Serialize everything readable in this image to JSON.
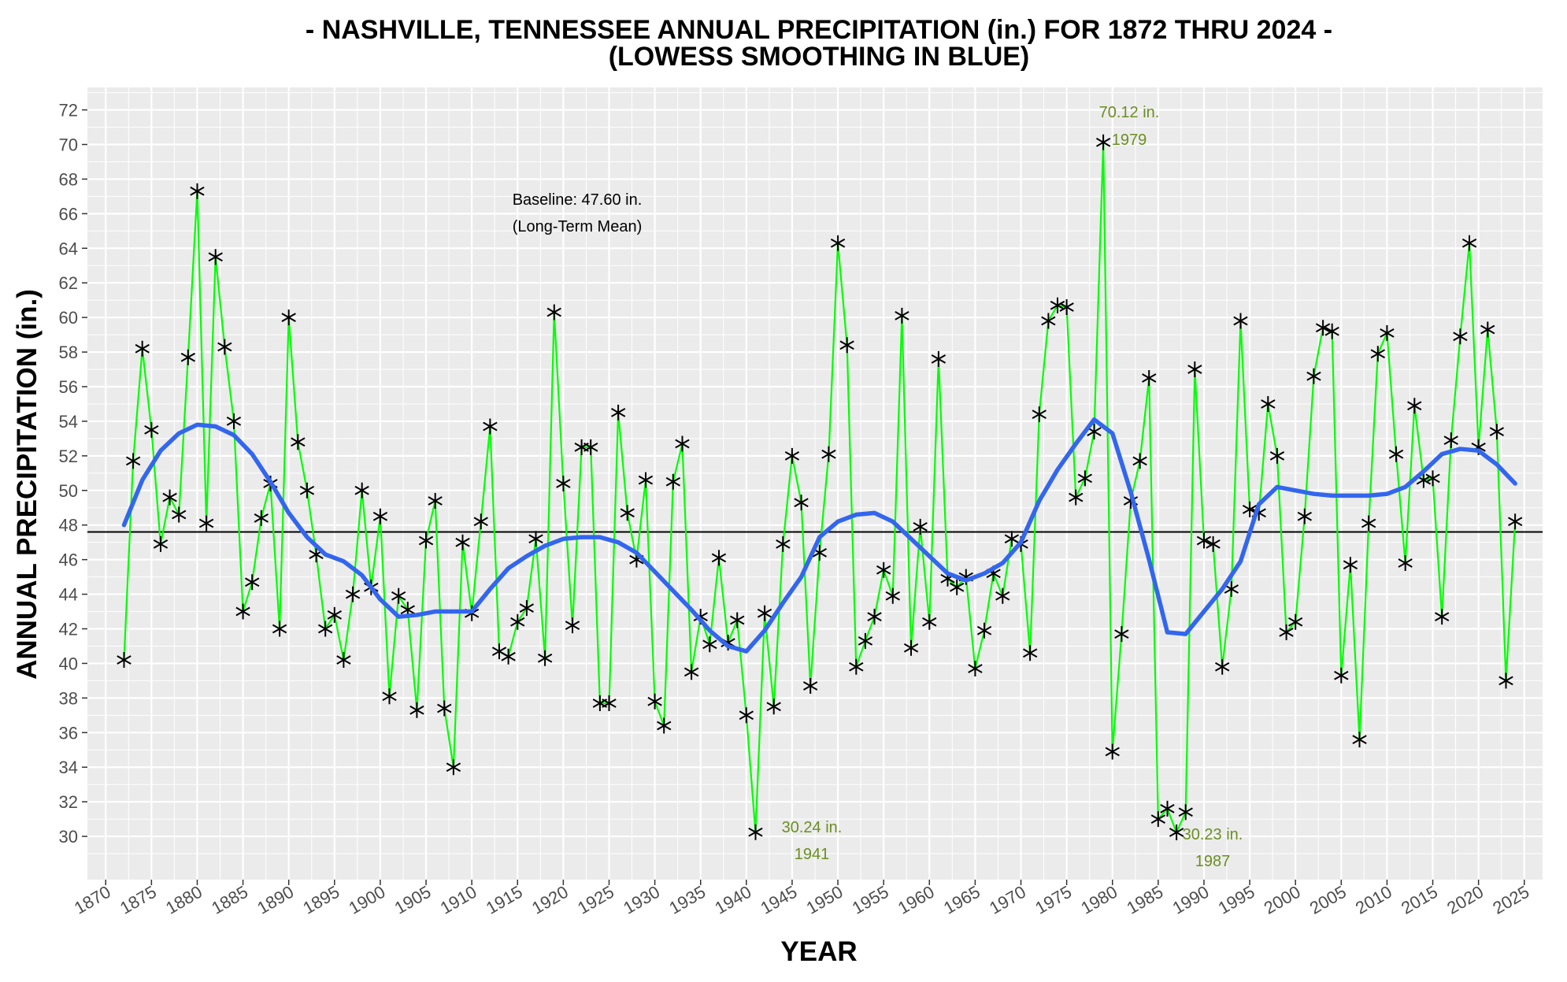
{
  "chart_data": {
    "type": "line",
    "title": "- NASHVILLE, TENNESSEE ANNUAL PRECIPITATION (in.) FOR 1872 THRU 2024 -",
    "subtitle": "(LOWESS SMOOTHING IN BLUE)",
    "xlabel": "YEAR",
    "ylabel": "ANNUAL PRECIPITATION (in.)",
    "xlim": [
      1868,
      2027
    ],
    "ylim": [
      27.5,
      73.3
    ],
    "x_ticks": [
      "1870",
      "1875",
      "1880",
      "1885",
      "1890",
      "1895",
      "1900",
      "1905",
      "1910",
      "1915",
      "1920",
      "1925",
      "1930",
      "1935",
      "1940",
      "1945",
      "1950",
      "1955",
      "1960",
      "1965",
      "1970",
      "1975",
      "1980",
      "1985",
      "1990",
      "1995",
      "2000",
      "2005",
      "2010",
      "2015",
      "2020",
      "2025"
    ],
    "y_ticks": [
      "30",
      "32",
      "34",
      "36",
      "38",
      "40",
      "42",
      "44",
      "46",
      "48",
      "50",
      "52",
      "54",
      "56",
      "58",
      "60",
      "62",
      "64",
      "66",
      "68",
      "70",
      "72"
    ],
    "grid": true,
    "colors": {
      "observed_line": "#00ff00",
      "markers": "#000000",
      "lowess": "#3366ee",
      "baseline": "#000000",
      "panel_bg": "#ebebeb",
      "grid": "#ffffff",
      "annotation": "#6b8e23"
    },
    "baseline": {
      "value": 47.6,
      "label_line1": "Baseline: 47.60 in.",
      "label_line2": "(Long-Term Mean)"
    },
    "annotations": [
      {
        "line1": "70.12 in.",
        "line2": "1979"
      },
      {
        "line1": "30.24 in.",
        "line2": "1941"
      },
      {
        "line1": "30.23 in.",
        "line2": "1987"
      }
    ],
    "series": [
      {
        "role": "observed",
        "x": [
          1872,
          1873,
          1874,
          1875,
          1876,
          1877,
          1878,
          1879,
          1880,
          1881,
          1882,
          1883,
          1884,
          1885,
          1886,
          1887,
          1888,
          1889,
          1890,
          1891,
          1892,
          1893,
          1894,
          1895,
          1896,
          1897,
          1898,
          1899,
          1900,
          1901,
          1902,
          1903,
          1904,
          1905,
          1906,
          1907,
          1908,
          1909,
          1910,
          1911,
          1912,
          1913,
          1914,
          1915,
          1916,
          1917,
          1918,
          1919,
          1920,
          1921,
          1922,
          1923,
          1924,
          1925,
          1926,
          1927,
          1928,
          1929,
          1930,
          1931,
          1932,
          1933,
          1934,
          1935,
          1936,
          1937,
          1938,
          1939,
          1940,
          1941,
          1942,
          1943,
          1944,
          1945,
          1946,
          1947,
          1948,
          1949,
          1950,
          1951,
          1952,
          1953,
          1954,
          1955,
          1956,
          1957,
          1958,
          1959,
          1960,
          1961,
          1962,
          1963,
          1964,
          1965,
          1966,
          1967,
          1968,
          1969,
          1970,
          1971,
          1972,
          1973,
          1974,
          1975,
          1976,
          1977,
          1978,
          1979,
          1980,
          1981,
          1982,
          1983,
          1984,
          1985,
          1986,
          1987,
          1988,
          1989,
          1990,
          1991,
          1992,
          1993,
          1994,
          1995,
          1996,
          1997,
          1998,
          1999,
          2000,
          2001,
          2002,
          2003,
          2004,
          2005,
          2006,
          2007,
          2008,
          2009,
          2010,
          2011,
          2012,
          2013,
          2014,
          2015,
          2016,
          2017,
          2018,
          2019,
          2020,
          2021,
          2022,
          2023,
          2024
        ],
        "y": [
          40.2,
          51.7,
          58.2,
          53.5,
          46.9,
          49.6,
          48.6,
          57.7,
          67.3,
          48.1,
          63.5,
          58.3,
          54.0,
          43.0,
          44.7,
          48.4,
          50.4,
          42.0,
          60.0,
          52.8,
          50.0,
          46.3,
          42.0,
          42.8,
          40.2,
          44.0,
          50.0,
          44.4,
          48.5,
          38.1,
          43.9,
          43.1,
          37.3,
          47.1,
          49.4,
          37.4,
          34.0,
          47.0,
          42.9,
          48.2,
          53.7,
          40.7,
          40.4,
          42.4,
          43.2,
          47.2,
          40.3,
          60.3,
          50.4,
          42.2,
          52.5,
          52.5,
          37.7,
          37.7,
          54.5,
          48.7,
          46.0,
          50.6,
          37.8,
          36.4,
          50.5,
          52.7,
          39.5,
          42.7,
          41.1,
          46.1,
          41.2,
          42.5,
          37.0,
          30.24,
          42.9,
          37.5,
          46.9,
          52.0,
          49.3,
          38.7,
          46.4,
          52.1,
          64.3,
          58.4,
          39.8,
          41.3,
          42.7,
          45.4,
          43.9,
          60.1,
          40.9,
          47.9,
          42.4,
          57.6,
          44.9,
          44.4,
          45.0,
          39.7,
          41.9,
          45.2,
          43.9,
          47.2,
          46.9,
          40.6,
          54.4,
          59.8,
          60.7,
          60.6,
          49.6,
          50.7,
          53.4,
          70.12,
          34.9,
          41.7,
          49.4,
          51.7,
          56.5,
          31.0,
          31.6,
          30.23,
          31.4,
          57.0,
          47.1,
          46.9,
          39.8,
          44.3,
          59.8,
          48.9,
          48.7,
          55.0,
          52.0,
          41.8,
          42.4,
          48.5,
          56.6,
          59.4,
          59.2,
          39.3,
          45.7,
          35.6,
          48.1,
          57.9,
          59.1,
          52.1,
          45.8,
          54.9,
          50.6,
          50.7,
          42.7,
          52.9,
          58.9,
          64.3,
          52.5,
          59.3,
          53.4,
          39.0,
          48.2
        ]
      },
      {
        "role": "lowess",
        "x": [
          1872,
          1874,
          1876,
          1878,
          1880,
          1882,
          1884,
          1886,
          1888,
          1890,
          1892,
          1894,
          1896,
          1898,
          1900,
          1902,
          1904,
          1906,
          1908,
          1910,
          1912,
          1914,
          1916,
          1918,
          1920,
          1922,
          1924,
          1926,
          1928,
          1930,
          1932,
          1934,
          1936,
          1938,
          1940,
          1942,
          1944,
          1946,
          1948,
          1950,
          1952,
          1954,
          1956,
          1958,
          1960,
          1962,
          1964,
          1966,
          1968,
          1970,
          1972,
          1974,
          1976,
          1978,
          1980,
          1982,
          1984,
          1986,
          1988,
          1990,
          1992,
          1994,
          1996,
          1998,
          2000,
          2002,
          2004,
          2006,
          2008,
          2010,
          2012,
          2014,
          2016,
          2018,
          2020,
          2022,
          2024
        ],
        "y": [
          48.0,
          50.6,
          52.3,
          53.3,
          53.8,
          53.7,
          53.2,
          52.1,
          50.5,
          48.7,
          47.3,
          46.3,
          45.9,
          45.1,
          43.7,
          42.7,
          42.8,
          43.0,
          43.0,
          43.0,
          44.3,
          45.5,
          46.2,
          46.8,
          47.2,
          47.3,
          47.3,
          47.0,
          46.4,
          45.3,
          44.2,
          43.1,
          41.9,
          41.0,
          40.7,
          41.9,
          43.5,
          45.0,
          47.3,
          48.2,
          48.6,
          48.7,
          48.2,
          47.2,
          46.2,
          45.2,
          44.8,
          45.2,
          45.8,
          47.0,
          49.4,
          51.2,
          52.7,
          54.1,
          53.3,
          49.9,
          46.0,
          41.8,
          41.7,
          43.0,
          44.3,
          45.9,
          49.2,
          50.2,
          50.0,
          49.8,
          49.7,
          49.7,
          49.7,
          49.8,
          50.2,
          51.1,
          52.1,
          52.4,
          52.3,
          51.5,
          50.4
        ]
      }
    ]
  }
}
